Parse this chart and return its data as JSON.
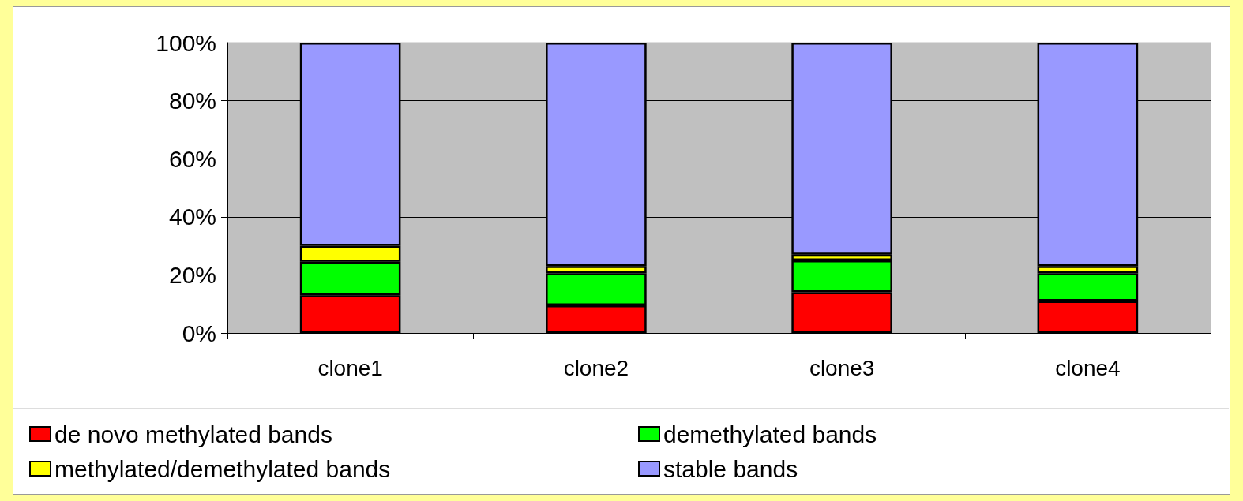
{
  "chart_data": {
    "type": "bar",
    "stacked": true,
    "categories": [
      "clone1",
      "clone2",
      "clone3",
      "clone4"
    ],
    "series": [
      {
        "name": "de novo methylated bands",
        "color": "#ff0000",
        "values": [
          13,
          9.5,
          14,
          11
        ]
      },
      {
        "name": "demethylated bands",
        "color": "#00ff00",
        "values": [
          11.5,
          11,
          11,
          9.5
        ]
      },
      {
        "name": "methylated/demethylated bands",
        "color": "#ffff00",
        "values": [
          5.5,
          2.5,
          2,
          2.5
        ]
      },
      {
        "name": "stable bands",
        "color": "#9999ff",
        "values": [
          70,
          77,
          73,
          77
        ]
      }
    ],
    "ylim": [
      0,
      100
    ],
    "yticks": [
      {
        "value": 0,
        "label": "0%"
      },
      {
        "value": 20,
        "label": "20%"
      },
      {
        "value": 40,
        "label": "40%"
      },
      {
        "value": 60,
        "label": "60%"
      },
      {
        "value": 80,
        "label": "80%"
      },
      {
        "value": 100,
        "label": "100%"
      }
    ],
    "grid": "y",
    "legend": "bottom"
  }
}
